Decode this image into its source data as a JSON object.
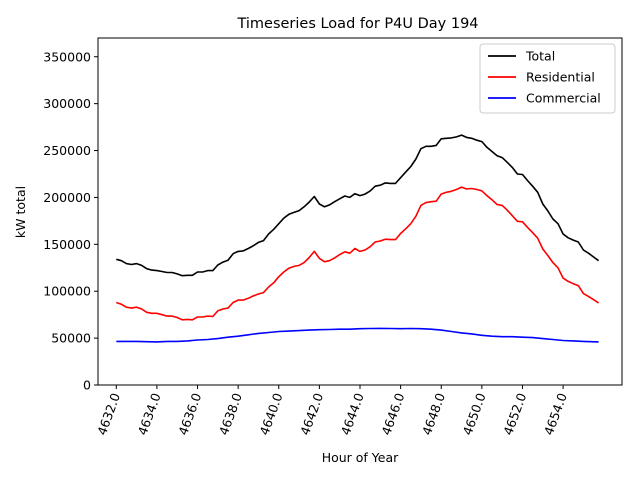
{
  "chart_data": {
    "type": "line",
    "title": "Timeseries Load for P4U   Day 194",
    "xlabel": "Hour of Year",
    "ylabel": "kW total",
    "xlim": [
      4631.1,
      4656.9
    ],
    "ylim": [
      0,
      370000
    ],
    "xticks": [
      4632,
      4634,
      4636,
      4638,
      4640,
      4642,
      4644,
      4646,
      4648,
      4650,
      4652,
      4654
    ],
    "xtick_labels": [
      "4632.0",
      "4634.0",
      "4636.0",
      "4638.0",
      "4640.0",
      "4642.0",
      "4644.0",
      "4646.0",
      "4648.0",
      "4650.0",
      "4652.0",
      "4654.0"
    ],
    "yticks": [
      0,
      50000,
      100000,
      150000,
      200000,
      250000,
      300000,
      350000
    ],
    "ytick_labels": [
      "0",
      "50000",
      "100000",
      "150000",
      "200000",
      "250000",
      "300000",
      "350000"
    ],
    "legend_position": "top-right",
    "series": [
      {
        "name": "Total",
        "color": "#000000",
        "points": [
          [
            4632.0,
            134000
          ],
          [
            4632.25,
            132500
          ],
          [
            4632.5,
            129500
          ],
          [
            4632.75,
            128500
          ],
          [
            4633.0,
            129500
          ],
          [
            4633.25,
            127500
          ],
          [
            4633.5,
            124000
          ],
          [
            4633.75,
            122500
          ],
          [
            4634.0,
            122000
          ],
          [
            4634.25,
            121000
          ],
          [
            4634.5,
            120000
          ],
          [
            4634.75,
            120000
          ],
          [
            4635.0,
            118500
          ],
          [
            4635.25,
            116500
          ],
          [
            4635.5,
            117000
          ],
          [
            4635.75,
            117000
          ],
          [
            4636.0,
            120500
          ],
          [
            4636.25,
            120500
          ],
          [
            4636.5,
            122000
          ],
          [
            4636.75,
            122000
          ],
          [
            4637.0,
            128000
          ],
          [
            4637.25,
            131000
          ],
          [
            4637.5,
            133000
          ],
          [
            4637.75,
            140000
          ],
          [
            4638.0,
            142500
          ],
          [
            4638.25,
            143000
          ],
          [
            4638.5,
            145500
          ],
          [
            4638.75,
            148500
          ],
          [
            4639.0,
            152000
          ],
          [
            4639.25,
            154000
          ],
          [
            4639.5,
            161000
          ],
          [
            4639.75,
            166000
          ],
          [
            4640.0,
            172000
          ],
          [
            4640.25,
            178000
          ],
          [
            4640.5,
            182000
          ],
          [
            4640.75,
            184000
          ],
          [
            4641.0,
            186000
          ],
          [
            4641.25,
            190000
          ],
          [
            4641.5,
            195000
          ],
          [
            4641.75,
            201000
          ],
          [
            4642.0,
            193000
          ],
          [
            4642.25,
            190000
          ],
          [
            4642.5,
            192000
          ],
          [
            4642.75,
            195500
          ],
          [
            4643.0,
            198500
          ],
          [
            4643.25,
            201500
          ],
          [
            4643.5,
            200000
          ],
          [
            4643.75,
            204000
          ],
          [
            4644.0,
            202000
          ],
          [
            4644.25,
            203500
          ],
          [
            4644.5,
            207000
          ],
          [
            4644.75,
            212000
          ],
          [
            4645.0,
            213000
          ],
          [
            4645.25,
            215500
          ],
          [
            4645.5,
            215000
          ],
          [
            4645.75,
            215000
          ],
          [
            4646.0,
            221000
          ],
          [
            4646.25,
            227000
          ],
          [
            4646.5,
            233000
          ],
          [
            4646.75,
            241000
          ],
          [
            4647.0,
            252000
          ],
          [
            4647.25,
            254500
          ],
          [
            4647.5,
            254500
          ],
          [
            4647.75,
            255500
          ],
          [
            4648.0,
            262500
          ],
          [
            4648.25,
            263000
          ],
          [
            4648.5,
            263500
          ],
          [
            4648.75,
            264500
          ],
          [
            4649.0,
            266500
          ],
          [
            4649.25,
            264000
          ],
          [
            4649.5,
            263000
          ],
          [
            4649.75,
            261000
          ],
          [
            4650.0,
            259500
          ],
          [
            4650.25,
            253500
          ],
          [
            4650.5,
            249000
          ],
          [
            4650.75,
            244500
          ],
          [
            4651.0,
            242500
          ],
          [
            4651.25,
            237500
          ],
          [
            4651.5,
            232000
          ],
          [
            4651.75,
            225000
          ],
          [
            4652.0,
            224500
          ],
          [
            4652.25,
            218000
          ],
          [
            4652.5,
            212000
          ],
          [
            4652.75,
            205500
          ],
          [
            4653.0,
            193000
          ],
          [
            4653.25,
            185500
          ],
          [
            4653.5,
            177000
          ],
          [
            4653.75,
            172000
          ],
          [
            4654.0,
            161000
          ],
          [
            4654.25,
            157000
          ],
          [
            4654.5,
            154500
          ],
          [
            4654.75,
            152500
          ],
          [
            4655.0,
            144000
          ],
          [
            4655.25,
            140500
          ],
          [
            4655.5,
            136500
          ],
          [
            4655.75,
            132500
          ]
        ]
      },
      {
        "name": "Residential",
        "color": "#ff0000",
        "points": [
          [
            4632.0,
            88000
          ],
          [
            4632.25,
            86000
          ],
          [
            4632.5,
            83000
          ],
          [
            4632.75,
            82000
          ],
          [
            4633.0,
            83000
          ],
          [
            4633.25,
            81000
          ],
          [
            4633.5,
            77500
          ],
          [
            4633.75,
            76500
          ],
          [
            4634.0,
            76500
          ],
          [
            4634.25,
            75000
          ],
          [
            4634.5,
            73500
          ],
          [
            4634.75,
            73500
          ],
          [
            4635.0,
            72000
          ],
          [
            4635.25,
            69500
          ],
          [
            4635.5,
            70000
          ],
          [
            4635.75,
            69500
          ],
          [
            4636.0,
            72500
          ],
          [
            4636.25,
            72500
          ],
          [
            4636.5,
            73500
          ],
          [
            4636.75,
            73000
          ],
          [
            4637.0,
            79000
          ],
          [
            4637.25,
            81000
          ],
          [
            4637.5,
            82000
          ],
          [
            4637.75,
            88000
          ],
          [
            4638.0,
            90500
          ],
          [
            4638.25,
            90500
          ],
          [
            4638.5,
            92500
          ],
          [
            4638.75,
            95000
          ],
          [
            4639.0,
            97000
          ],
          [
            4639.25,
            98500
          ],
          [
            4639.5,
            104500
          ],
          [
            4639.75,
            109000
          ],
          [
            4640.0,
            115500
          ],
          [
            4640.25,
            120500
          ],
          [
            4640.5,
            124500
          ],
          [
            4640.75,
            126500
          ],
          [
            4641.0,
            127500
          ],
          [
            4641.25,
            130500
          ],
          [
            4641.5,
            136000
          ],
          [
            4641.75,
            142500
          ],
          [
            4642.0,
            135000
          ],
          [
            4642.25,
            131500
          ],
          [
            4642.5,
            132500
          ],
          [
            4642.75,
            135500
          ],
          [
            4643.0,
            139000
          ],
          [
            4643.25,
            142000
          ],
          [
            4643.5,
            140500
          ],
          [
            4643.75,
            145500
          ],
          [
            4644.0,
            142500
          ],
          [
            4644.25,
            144000
          ],
          [
            4644.5,
            147500
          ],
          [
            4644.75,
            152500
          ],
          [
            4645.0,
            153500
          ],
          [
            4645.25,
            155500
          ],
          [
            4645.5,
            155000
          ],
          [
            4645.75,
            155000
          ],
          [
            4646.0,
            161500
          ],
          [
            4646.25,
            166500
          ],
          [
            4646.5,
            172000
          ],
          [
            4646.75,
            180000
          ],
          [
            4647.0,
            191500
          ],
          [
            4647.25,
            194500
          ],
          [
            4647.5,
            195500
          ],
          [
            4647.75,
            196000
          ],
          [
            4648.0,
            203500
          ],
          [
            4648.25,
            205500
          ],
          [
            4648.5,
            206500
          ],
          [
            4648.75,
            208500
          ],
          [
            4649.0,
            211000
          ],
          [
            4649.25,
            209000
          ],
          [
            4649.5,
            209500
          ],
          [
            4649.75,
            208500
          ],
          [
            4650.0,
            207000
          ],
          [
            4650.25,
            202000
          ],
          [
            4650.5,
            197500
          ],
          [
            4650.75,
            192500
          ],
          [
            4651.0,
            191500
          ],
          [
            4651.25,
            186500
          ],
          [
            4651.5,
            180500
          ],
          [
            4651.75,
            174500
          ],
          [
            4652.0,
            174000
          ],
          [
            4652.25,
            168000
          ],
          [
            4652.5,
            162500
          ],
          [
            4652.75,
            156500
          ],
          [
            4653.0,
            145000
          ],
          [
            4653.25,
            138000
          ],
          [
            4653.5,
            130500
          ],
          [
            4653.75,
            125000
          ],
          [
            4654.0,
            114000
          ],
          [
            4654.25,
            110500
          ],
          [
            4654.5,
            108000
          ],
          [
            4654.75,
            106000
          ],
          [
            4655.0,
            97500
          ],
          [
            4655.25,
            94500
          ],
          [
            4655.5,
            91000
          ],
          [
            4655.75,
            87500
          ]
        ]
      },
      {
        "name": "Commercial",
        "color": "#0000ff",
        "points": [
          [
            4632.0,
            46500
          ],
          [
            4632.5,
            46500
          ],
          [
            4633.0,
            46500
          ],
          [
            4633.5,
            46200
          ],
          [
            4634.0,
            46000
          ],
          [
            4634.5,
            46500
          ],
          [
            4635.0,
            46500
          ],
          [
            4635.5,
            47000
          ],
          [
            4636.0,
            48000
          ],
          [
            4636.5,
            48500
          ],
          [
            4637.0,
            49500
          ],
          [
            4637.5,
            51000
          ],
          [
            4638.0,
            52000
          ],
          [
            4638.5,
            53500
          ],
          [
            4639.0,
            55000
          ],
          [
            4639.5,
            56000
          ],
          [
            4640.0,
            57000
          ],
          [
            4640.5,
            57500
          ],
          [
            4641.0,
            58000
          ],
          [
            4641.5,
            58500
          ],
          [
            4642.0,
            59000
          ],
          [
            4642.5,
            59200
          ],
          [
            4643.0,
            59500
          ],
          [
            4643.5,
            59500
          ],
          [
            4644.0,
            60000
          ],
          [
            4644.5,
            60200
          ],
          [
            4645.0,
            60300
          ],
          [
            4645.5,
            60200
          ],
          [
            4646.0,
            60000
          ],
          [
            4646.5,
            60200
          ],
          [
            4647.0,
            60000
          ],
          [
            4647.5,
            59500
          ],
          [
            4648.0,
            58500
          ],
          [
            4648.5,
            57000
          ],
          [
            4649.0,
            55500
          ],
          [
            4649.5,
            54500
          ],
          [
            4650.0,
            53000
          ],
          [
            4650.5,
            52000
          ],
          [
            4651.0,
            51500
          ],
          [
            4651.5,
            51500
          ],
          [
            4652.0,
            51000
          ],
          [
            4652.5,
            50500
          ],
          [
            4653.0,
            49500
          ],
          [
            4653.5,
            48500
          ],
          [
            4654.0,
            47500
          ],
          [
            4654.5,
            47000
          ],
          [
            4655.0,
            46500
          ],
          [
            4655.75,
            46000
          ]
        ]
      }
    ]
  }
}
